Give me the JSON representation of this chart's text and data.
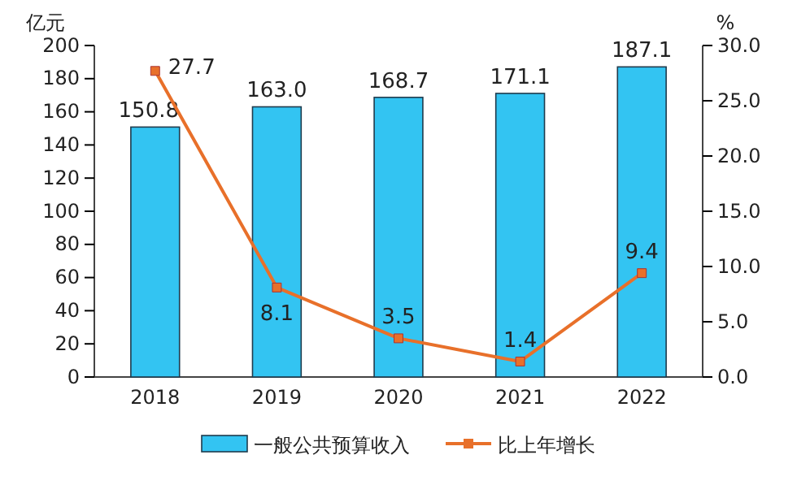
{
  "chart_data": {
    "type": "bar",
    "ylabel": "亿元",
    "y2label": "%",
    "categories": [
      "2018",
      "2019",
      "2020",
      "2021",
      "2022"
    ],
    "series": [
      {
        "name": "一般公共预算收入",
        "color": "#33c4f2",
        "values": [
          150.8,
          163.0,
          168.7,
          171.1,
          187.1
        ],
        "value_labels": [
          "150.8",
          "163.0",
          "168.7",
          "171.1",
          "187.1"
        ]
      },
      {
        "name": "比上年增长",
        "type": "line",
        "axis": "y2",
        "color": "#e8702a",
        "values": [
          27.7,
          8.1,
          3.5,
          1.4,
          9.4
        ],
        "value_labels": [
          "27.7",
          "8.1",
          "3.5",
          "1.4",
          "9.4"
        ]
      }
    ],
    "ylim": [
      0,
      200
    ],
    "yticks": [
      0,
      20,
      40,
      60,
      80,
      100,
      120,
      140,
      160,
      180,
      200
    ],
    "y2lim": [
      0,
      30
    ],
    "y2ticks": [
      {
        "value": 0,
        "label": "0.0"
      },
      {
        "value": 5,
        "label": "5.0"
      },
      {
        "value": 10,
        "label": "10.0"
      },
      {
        "value": 15,
        "label": "15.0"
      },
      {
        "value": 20,
        "label": "20.0"
      },
      {
        "value": 25,
        "label": "25.0"
      },
      {
        "value": 30,
        "label": "30.0"
      }
    ],
    "legend": "bottom",
    "marker": "square",
    "grid": false
  }
}
